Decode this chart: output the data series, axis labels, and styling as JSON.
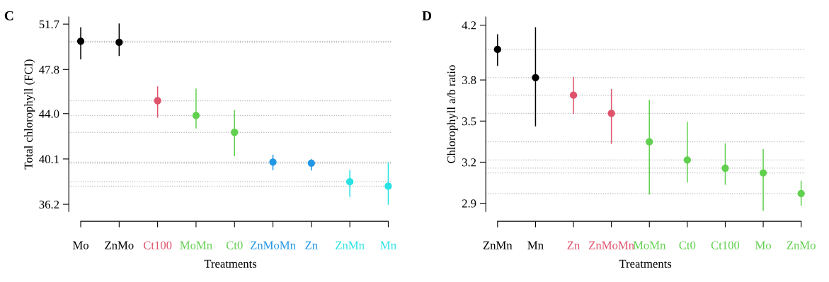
{
  "chart_data": [
    {
      "type": "scatter",
      "title": "C",
      "xlabel": "Treatments",
      "ylabel": "Total chlorophyll (FCI)",
      "marker": "circle",
      "categories": [
        "Mo",
        "ZnMo",
        "Ct100",
        "MoMn",
        "Ct0",
        "ZnMoMn",
        "Zn",
        "ZnMn",
        "Mn"
      ],
      "values": [
        50.23,
        50.14,
        45.11,
        43.84,
        42.39,
        39.83,
        39.74,
        38.14,
        37.76
      ],
      "errors": [
        [
          48.72,
          51.39
        ],
        [
          49.0,
          51.7
        ],
        [
          43.7,
          46.29
        ],
        [
          42.77,
          46.11
        ],
        [
          40.39,
          44.26
        ],
        [
          39.18,
          40.41
        ],
        [
          39.16,
          40.03
        ],
        [
          36.87,
          39.1
        ],
        [
          36.2,
          39.76
        ]
      ],
      "colors": [
        "#000000",
        "#000000",
        "#df536b",
        "#61d04f",
        "#61d04f",
        "#2297e6",
        "#2297e6",
        "#28e2e5",
        "#28e2e5"
      ],
      "ylim": [
        35.58,
        52.32
      ],
      "yticks": [
        {
          "value": 36.2,
          "label": "36.2"
        },
        {
          "value": 40.1,
          "label": "40.1"
        },
        {
          "value": 44.0,
          "label": "44.0"
        },
        {
          "value": 47.8,
          "label": "47.8"
        },
        {
          "value": 51.7,
          "label": "51.7"
        }
      ],
      "ref_lines": [
        {
          "axis": "y",
          "value": 50.23,
          "color": "#bbbbbb",
          "line_style": "dotted"
        },
        {
          "axis": "y",
          "value": 50.14,
          "color": "#bbbbbb",
          "line_style": "dotted"
        },
        {
          "axis": "y",
          "value": 45.11,
          "color": "#bbbbbb",
          "line_style": "dotted"
        },
        {
          "axis": "y",
          "value": 43.84,
          "color": "#bbbbbb",
          "line_style": "dotted"
        },
        {
          "axis": "y",
          "value": 42.39,
          "color": "#bbbbbb",
          "line_style": "dotted"
        },
        {
          "axis": "y",
          "value": 39.83,
          "color": "#bbbbbb",
          "line_style": "dotted"
        },
        {
          "axis": "y",
          "value": 39.74,
          "color": "#bbbbbb",
          "line_style": "dotted"
        },
        {
          "axis": "y",
          "value": 38.14,
          "color": "#bbbbbb",
          "line_style": "dotted"
        },
        {
          "axis": "y",
          "value": 37.76,
          "color": "#bbbbbb",
          "line_style": "dotted"
        }
      ]
    },
    {
      "type": "scatter",
      "title": "D",
      "xlabel": "Treatments",
      "ylabel": "Chlorophyll a/b ratio",
      "marker": "circle",
      "categories": [
        "ZnMn",
        "Mn",
        "Zn",
        "ZnMoMn",
        "MoMn",
        "Ct0",
        "Ct100",
        "Mo",
        "ZnMo"
      ],
      "values": [
        4.023,
        3.817,
        3.689,
        3.556,
        3.349,
        3.216,
        3.156,
        3.122,
        2.971
      ],
      "errors": [
        [
          3.907,
          4.13
        ],
        [
          3.465,
          4.181
        ],
        [
          3.556,
          3.819
        ],
        [
          3.338,
          3.73
        ],
        [
          2.968,
          3.651
        ],
        [
          3.056,
          3.49
        ],
        [
          3.039,
          3.334
        ],
        [
          2.849,
          3.291
        ],
        [
          2.887,
          3.06
        ]
      ],
      "colors": [
        "#000000",
        "#000000",
        "#df536b",
        "#df536b",
        "#61d04f",
        "#61d04f",
        "#61d04f",
        "#61d04f",
        "#61d04f"
      ],
      "ylim": [
        2.84,
        4.26
      ],
      "yticks": [
        {
          "value": 2.9,
          "label": "2.9"
        },
        {
          "value": 3.2,
          "label": "3.2"
        },
        {
          "value": 3.5,
          "label": "3.5"
        },
        {
          "value": 3.8,
          "label": "3.8"
        },
        {
          "value": 4.2,
          "label": "4.2"
        }
      ],
      "ref_lines": [
        {
          "axis": "y",
          "value": 4.023,
          "color": "#bbbbbb",
          "line_style": "dotted"
        },
        {
          "axis": "y",
          "value": 3.817,
          "color": "#bbbbbb",
          "line_style": "dotted"
        },
        {
          "axis": "y",
          "value": 3.689,
          "color": "#bbbbbb",
          "line_style": "dotted"
        },
        {
          "axis": "y",
          "value": 3.556,
          "color": "#bbbbbb",
          "line_style": "dotted"
        },
        {
          "axis": "y",
          "value": 3.349,
          "color": "#bbbbbb",
          "line_style": "dotted"
        },
        {
          "axis": "y",
          "value": 3.216,
          "color": "#bbbbbb",
          "line_style": "dotted"
        },
        {
          "axis": "y",
          "value": 3.156,
          "color": "#bbbbbb",
          "line_style": "dotted"
        },
        {
          "axis": "y",
          "value": 3.122,
          "color": "#bbbbbb",
          "line_style": "dotted"
        },
        {
          "axis": "y",
          "value": 2.971,
          "color": "#bbbbbb",
          "line_style": "dotted"
        }
      ]
    }
  ]
}
